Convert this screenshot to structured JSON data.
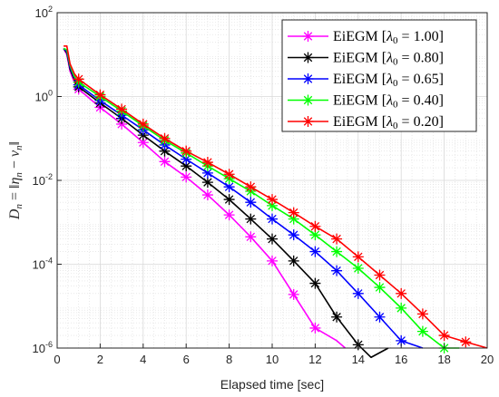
{
  "chart_data": {
    "type": "line",
    "title": "",
    "xlabel": "Elapsed time [sec]",
    "ylabel": "D_n = ||η_n − v_n||",
    "ylabel_display": {
      "lhs_main": "D",
      "lhs_sub": "n",
      "eq": " = ‖",
      "a_main": "η",
      "a_sub": "n",
      "minus": " − ",
      "b_main": "v",
      "b_sub": "n",
      "close": "‖"
    },
    "x_range": [
      0,
      20
    ],
    "y_range": [
      1e-06,
      100
    ],
    "y_scale": "log",
    "grid": true,
    "minor_grid": true,
    "legend_position": "top-right",
    "x_ticks": [
      "0",
      "2",
      "4",
      "6",
      "8",
      "10",
      "12",
      "14",
      "16",
      "18",
      "20"
    ],
    "y_ticks": [
      {
        "base": "10",
        "exp": "-6"
      },
      {
        "base": "10",
        "exp": "-4"
      },
      {
        "base": "10",
        "exp": "-2"
      },
      {
        "base": "10",
        "exp": "0"
      },
      {
        "base": "10",
        "exp": "2"
      }
    ],
    "series": [
      {
        "name": "EiEGM [λ0 = 1.00]",
        "legend": {
          "prefix": "EiEGM [",
          "sym": "λ",
          "sub": "0",
          "eqval": " = 1.00]"
        },
        "color": "#ff00ff",
        "points": [
          [
            0.3,
            14
          ],
          [
            0.45,
            10
          ],
          [
            0.6,
            4
          ],
          [
            0.8,
            2.2
          ],
          [
            1,
            1.5
          ],
          [
            2,
            0.55
          ],
          [
            3,
            0.22
          ],
          [
            4,
            0.08
          ],
          [
            5,
            0.028
          ],
          [
            6,
            0.012
          ],
          [
            7,
            0.0045
          ],
          [
            8,
            0.0015
          ],
          [
            9,
            0.00045
          ],
          [
            10,
            0.00012
          ],
          [
            11,
            1.9e-05
          ],
          [
            12,
            3e-06
          ],
          [
            13,
            1.5e-06
          ],
          [
            13.4,
            1e-06
          ]
        ],
        "markers": [
          [
            1,
            1.5
          ],
          [
            2,
            0.55
          ],
          [
            3,
            0.22
          ],
          [
            4,
            0.08
          ],
          [
            5,
            0.028
          ],
          [
            6,
            0.012
          ],
          [
            7,
            0.0045
          ],
          [
            8,
            0.0015
          ],
          [
            9,
            0.00045
          ],
          [
            10,
            0.00012
          ],
          [
            11,
            1.9e-05
          ],
          [
            12,
            3e-06
          ]
        ]
      },
      {
        "name": "EiEGM [λ0 = 0.80]",
        "legend": {
          "prefix": "EiEGM [",
          "sym": "λ",
          "sub": "0",
          "eqval": " = 0.80]"
        },
        "color": "#000000",
        "points": [
          [
            0.3,
            14
          ],
          [
            0.45,
            11
          ],
          [
            0.6,
            4.5
          ],
          [
            0.8,
            2.5
          ],
          [
            1,
            1.7
          ],
          [
            2,
            0.7
          ],
          [
            3,
            0.3
          ],
          [
            4,
            0.12
          ],
          [
            5,
            0.05
          ],
          [
            6,
            0.022
          ],
          [
            7,
            0.009
          ],
          [
            8,
            0.0035
          ],
          [
            9,
            0.0012
          ],
          [
            10,
            0.0004
          ],
          [
            11,
            0.00012
          ],
          [
            12,
            3.5e-05
          ],
          [
            13,
            5.5e-06
          ],
          [
            14,
            1.2e-06
          ],
          [
            14.6,
            6e-07
          ],
          [
            15.4,
            1e-06
          ]
        ],
        "markers": [
          [
            1,
            1.7
          ],
          [
            2,
            0.7
          ],
          [
            3,
            0.3
          ],
          [
            4,
            0.12
          ],
          [
            5,
            0.05
          ],
          [
            6,
            0.022
          ],
          [
            7,
            0.009
          ],
          [
            8,
            0.0035
          ],
          [
            9,
            0.0012
          ],
          [
            10,
            0.0004
          ],
          [
            11,
            0.00012
          ],
          [
            12,
            3.5e-05
          ],
          [
            13,
            5.5e-06
          ],
          [
            14,
            1.2e-06
          ]
        ]
      },
      {
        "name": "EiEGM [λ0 = 0.65]",
        "legend": {
          "prefix": "EiEGM [",
          "sym": "λ",
          "sub": "0",
          "eqval": " = 0.65]"
        },
        "color": "#0000ff",
        "points": [
          [
            0.3,
            14
          ],
          [
            0.45,
            12
          ],
          [
            0.6,
            5
          ],
          [
            0.8,
            2.8
          ],
          [
            1,
            1.9
          ],
          [
            2,
            0.8
          ],
          [
            3,
            0.36
          ],
          [
            4,
            0.16
          ],
          [
            5,
            0.07
          ],
          [
            6,
            0.032
          ],
          [
            7,
            0.015
          ],
          [
            8,
            0.007
          ],
          [
            9,
            0.003
          ],
          [
            10,
            0.0012
          ],
          [
            11,
            0.0005
          ],
          [
            12,
            0.0002
          ],
          [
            13,
            7e-05
          ],
          [
            14,
            2e-05
          ],
          [
            15,
            5.5e-06
          ],
          [
            16,
            1.5e-06
          ],
          [
            17,
            1e-06
          ]
        ],
        "markers": [
          [
            1,
            1.9
          ],
          [
            2,
            0.8
          ],
          [
            3,
            0.36
          ],
          [
            4,
            0.16
          ],
          [
            5,
            0.07
          ],
          [
            6,
            0.032
          ],
          [
            7,
            0.015
          ],
          [
            8,
            0.007
          ],
          [
            9,
            0.003
          ],
          [
            10,
            0.0012
          ],
          [
            11,
            0.0005
          ],
          [
            12,
            0.0002
          ],
          [
            13,
            7e-05
          ],
          [
            14,
            2e-05
          ],
          [
            15,
            5.5e-06
          ],
          [
            16,
            1.5e-06
          ]
        ]
      },
      {
        "name": "EiEGM [λ0 = 0.40]",
        "legend": {
          "prefix": "EiEGM [",
          "sym": "λ",
          "sub": "0",
          "eqval": " = 0.40]"
        },
        "color": "#00ff00",
        "points": [
          [
            0.3,
            14
          ],
          [
            0.45,
            13
          ],
          [
            0.6,
            5.5
          ],
          [
            0.8,
            3
          ],
          [
            1,
            2.2
          ],
          [
            2,
            1
          ],
          [
            3,
            0.45
          ],
          [
            4,
            0.2
          ],
          [
            5,
            0.09
          ],
          [
            6,
            0.045
          ],
          [
            7,
            0.022
          ],
          [
            8,
            0.011
          ],
          [
            9,
            0.0055
          ],
          [
            10,
            0.0025
          ],
          [
            11,
            0.0012
          ],
          [
            12,
            0.0005
          ],
          [
            13,
            0.0002
          ],
          [
            14,
            8e-05
          ],
          [
            15,
            2.8e-05
          ],
          [
            16,
            9e-06
          ],
          [
            17,
            2.5e-06
          ],
          [
            18,
            1e-06
          ],
          [
            18.7,
            1e-06
          ]
        ],
        "markers": [
          [
            1,
            2.2
          ],
          [
            2,
            1
          ],
          [
            3,
            0.45
          ],
          [
            4,
            0.2
          ],
          [
            5,
            0.09
          ],
          [
            6,
            0.045
          ],
          [
            7,
            0.022
          ],
          [
            8,
            0.011
          ],
          [
            9,
            0.0055
          ],
          [
            10,
            0.0025
          ],
          [
            11,
            0.0012
          ],
          [
            12,
            0.0005
          ],
          [
            13,
            0.0002
          ],
          [
            14,
            8e-05
          ],
          [
            15,
            2.8e-05
          ],
          [
            16,
            9e-06
          ],
          [
            17,
            2.5e-06
          ],
          [
            18,
            1e-06
          ]
        ]
      },
      {
        "name": "EiEGM [λ0 = 0.20]",
        "legend": {
          "prefix": "EiEGM [",
          "sym": "λ",
          "sub": "0",
          "eqval": " = 0.20]"
        },
        "color": "#ff0000",
        "points": [
          [
            0.3,
            16
          ],
          [
            0.45,
            16
          ],
          [
            0.6,
            6
          ],
          [
            0.8,
            3.5
          ],
          [
            1,
            2.6
          ],
          [
            2,
            1.1
          ],
          [
            3,
            0.5
          ],
          [
            4,
            0.22
          ],
          [
            5,
            0.1
          ],
          [
            6,
            0.05
          ],
          [
            7,
            0.027
          ],
          [
            8,
            0.014
          ],
          [
            9,
            0.007
          ],
          [
            10,
            0.0035
          ],
          [
            11,
            0.0017
          ],
          [
            12,
            0.0008
          ],
          [
            13,
            0.0004
          ],
          [
            14,
            0.00015
          ],
          [
            15,
            5.5e-05
          ],
          [
            16,
            2e-05
          ],
          [
            17,
            6.5e-06
          ],
          [
            18,
            2e-06
          ],
          [
            19,
            1.4e-06
          ],
          [
            20,
            1e-06
          ]
        ],
        "markers": [
          [
            1,
            2.6
          ],
          [
            2,
            1.1
          ],
          [
            3,
            0.5
          ],
          [
            4,
            0.22
          ],
          [
            5,
            0.1
          ],
          [
            6,
            0.05
          ],
          [
            7,
            0.027
          ],
          [
            8,
            0.014
          ],
          [
            9,
            0.007
          ],
          [
            10,
            0.0035
          ],
          [
            11,
            0.0017
          ],
          [
            12,
            0.0008
          ],
          [
            13,
            0.0004
          ],
          [
            14,
            0.00015
          ],
          [
            15,
            5.5e-05
          ],
          [
            16,
            2e-05
          ],
          [
            17,
            6.5e-06
          ],
          [
            18,
            2e-06
          ],
          [
            19,
            1.4e-06
          ]
        ]
      }
    ]
  }
}
